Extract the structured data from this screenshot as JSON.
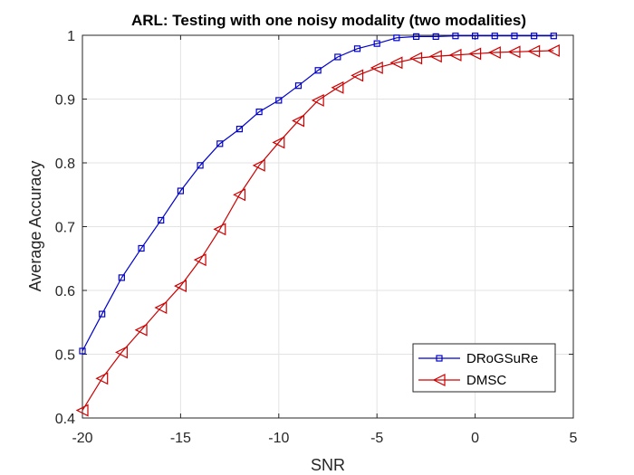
{
  "chart_data": {
    "type": "line",
    "title": "ARL: Testing with one noisy modality (two modalities)",
    "xlabel": "SNR",
    "ylabel": "Average Accuracy",
    "xlim": [
      -20,
      5
    ],
    "ylim": [
      0.4,
      1.0
    ],
    "xticks": [
      "-20",
      "-15",
      "-10",
      "-5",
      "0",
      "5"
    ],
    "yticks": [
      "0.4",
      "0.5",
      "0.6",
      "0.7",
      "0.8",
      "0.9",
      "1"
    ],
    "grid": true,
    "legend_position": "bottom-right",
    "x": [
      -20,
      -19,
      -18,
      -17,
      -16,
      -15,
      -14,
      -13,
      -12,
      -11,
      -10,
      -9,
      -8,
      -7,
      -6,
      -5,
      -4,
      -3,
      -2,
      -1,
      0,
      1,
      2,
      3,
      4
    ],
    "series": [
      {
        "name": "DRoGSuRe",
        "color": "#0000cc",
        "marker": "square",
        "values": [
          0.505,
          0.563,
          0.62,
          0.666,
          0.71,
          0.756,
          0.796,
          0.83,
          0.853,
          0.88,
          0.898,
          0.921,
          0.945,
          0.966,
          0.979,
          0.987,
          0.996,
          0.998,
          0.998,
          0.999,
          0.999,
          0.999,
          0.999,
          0.999,
          0.999
        ]
      },
      {
        "name": "DMSC",
        "color": "#cc0000",
        "marker": "triangle-left",
        "values": [
          0.412,
          0.462,
          0.503,
          0.538,
          0.573,
          0.607,
          0.648,
          0.696,
          0.75,
          0.796,
          0.832,
          0.866,
          0.898,
          0.918,
          0.937,
          0.949,
          0.957,
          0.964,
          0.967,
          0.969,
          0.971,
          0.973,
          0.974,
          0.975,
          0.976
        ]
      }
    ]
  }
}
